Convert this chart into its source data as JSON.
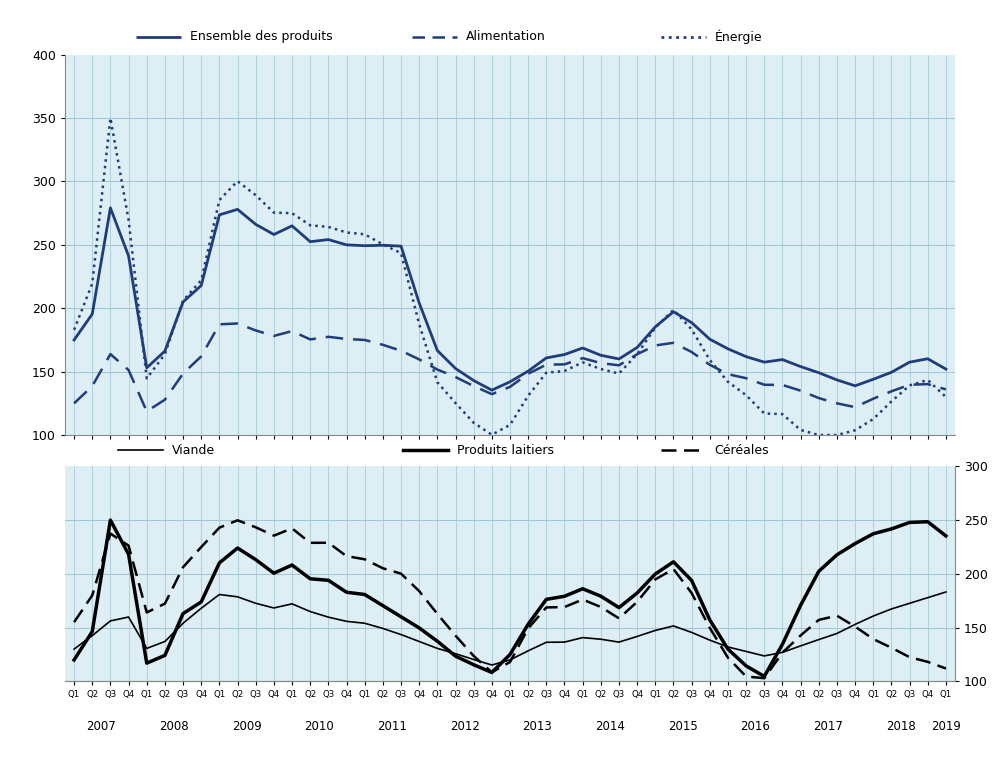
{
  "top_panel": {
    "ylim": [
      100,
      400
    ],
    "yticks": [
      100,
      150,
      200,
      250,
      300,
      350,
      400
    ],
    "ensemble": [
      175,
      190,
      195,
      200,
      280,
      275,
      270,
      155,
      152,
      155,
      160,
      175,
      200,
      210,
      215,
      220,
      265,
      278,
      272,
      280,
      272,
      265,
      260,
      258,
      260,
      265,
      255,
      252,
      258,
      255,
      250,
      250,
      250,
      250,
      248,
      248,
      252,
      250,
      248,
      245,
      175,
      170,
      165,
      160,
      150,
      148,
      142,
      140,
      135,
      138,
      142,
      148,
      150,
      155,
      160,
      165,
      163,
      165,
      168,
      170,
      165,
      160,
      158,
      162,
      165,
      172,
      180,
      188,
      195,
      198,
      192,
      188,
      182,
      175,
      172,
      168,
      165,
      162,
      160,
      158,
      155,
      160,
      158,
      155,
      152,
      150,
      148,
      145,
      142,
      140,
      138,
      142,
      145,
      148,
      150,
      155,
      158,
      162,
      160,
      155,
      152
    ],
    "alimentation": [
      125,
      130,
      138,
      145,
      163,
      168,
      160,
      125,
      118,
      120,
      125,
      132,
      145,
      152,
      158,
      165,
      182,
      190,
      188,
      188,
      185,
      182,
      180,
      178,
      180,
      182,
      178,
      175,
      180,
      178,
      175,
      175,
      178,
      175,
      175,
      172,
      170,
      168,
      165,
      162,
      158,
      155,
      150,
      148,
      145,
      142,
      138,
      135,
      132,
      135,
      138,
      142,
      148,
      152,
      155,
      158,
      155,
      158,
      160,
      162,
      158,
      155,
      152,
      158,
      162,
      165,
      168,
      172,
      175,
      172,
      168,
      165,
      160,
      155,
      152,
      148,
      146,
      145,
      143,
      140,
      138,
      140,
      138,
      136,
      133,
      130,
      128,
      126,
      124,
      122,
      122,
      126,
      130,
      133,
      135,
      138,
      140,
      142,
      140,
      138,
      136
    ],
    "energie": [
      183,
      198,
      218,
      235,
      352,
      340,
      308,
      155,
      143,
      148,
      158,
      172,
      200,
      212,
      218,
      225,
      272,
      292,
      295,
      302,
      295,
      288,
      280,
      275,
      278,
      275,
      268,
      265,
      270,
      265,
      260,
      258,
      265,
      260,
      255,
      252,
      248,
      245,
      242,
      240,
      150,
      145,
      140,
      135,
      122,
      118,
      108,
      103,
      100,
      103,
      108,
      112,
      130,
      142,
      148,
      155,
      150,
      152,
      155,
      162,
      155,
      148,
      145,
      152,
      158,
      168,
      178,
      188,
      195,
      200,
      190,
      182,
      172,
      158,
      150,
      142,
      138,
      132,
      125,
      118,
      112,
      118,
      112,
      106,
      100,
      100,
      100,
      100,
      100,
      102,
      105,
      108,
      115,
      122,
      128,
      135,
      140,
      148,
      143,
      135,
      130
    ]
  },
  "bottom_panel": {
    "ylim": [
      100,
      300
    ],
    "yticks_right": [
      100,
      150,
      200,
      250,
      300
    ],
    "viande": [
      130,
      138,
      142,
      148,
      155,
      162,
      168,
      135,
      130,
      132,
      135,
      140,
      150,
      158,
      165,
      170,
      178,
      182,
      180,
      178,
      175,
      172,
      170,
      168,
      170,
      172,
      168,
      165,
      163,
      160,
      158,
      155,
      158,
      155,
      152,
      150,
      148,
      145,
      142,
      140,
      135,
      132,
      130,
      128,
      125,
      122,
      120,
      118,
      115,
      118,
      120,
      122,
      128,
      133,
      136,
      138,
      136,
      138,
      140,
      142,
      140,
      138,
      135,
      138,
      140,
      143,
      146,
      148,
      150,
      152,
      148,
      145,
      142,
      138,
      135,
      132,
      130,
      128,
      126,
      124,
      122,
      126,
      130,
      132,
      135,
      138,
      140,
      143,
      146,
      150,
      155,
      158,
      162,
      165,
      168,
      170,
      173,
      175,
      178,
      180,
      183
    ],
    "produits_laitiers": [
      120,
      130,
      145,
      160,
      248,
      258,
      248,
      128,
      118,
      115,
      120,
      130,
      158,
      168,
      172,
      175,
      200,
      215,
      220,
      225,
      218,
      212,
      205,
      200,
      205,
      208,
      200,
      195,
      198,
      195,
      188,
      182,
      185,
      182,
      178,
      172,
      168,
      162,
      158,
      152,
      148,
      142,
      135,
      128,
      122,
      118,
      115,
      112,
      108,
      115,
      125,
      135,
      152,
      165,
      175,
      182,
      178,
      182,
      185,
      188,
      182,
      175,
      165,
      172,
      178,
      185,
      195,
      202,
      208,
      212,
      202,
      192,
      180,
      155,
      142,
      130,
      120,
      115,
      108,
      102,
      118,
      130,
      148,
      165,
      182,
      198,
      208,
      215,
      220,
      225,
      230,
      235,
      238,
      240,
      242,
      245,
      248,
      250,
      248,
      242,
      235
    ],
    "cereales": [
      155,
      165,
      178,
      200,
      235,
      248,
      242,
      178,
      165,
      162,
      168,
      178,
      200,
      212,
      220,
      228,
      238,
      245,
      248,
      250,
      248,
      242,
      238,
      235,
      238,
      242,
      235,
      228,
      235,
      230,
      222,
      215,
      220,
      215,
      210,
      205,
      205,
      202,
      198,
      192,
      178,
      168,
      160,
      150,
      140,
      132,
      122,
      115,
      108,
      112,
      118,
      128,
      148,
      162,
      168,
      172,
      168,
      172,
      175,
      178,
      172,
      165,
      155,
      162,
      168,
      178,
      188,
      198,
      202,
      205,
      192,
      180,
      168,
      148,
      135,
      122,
      112,
      105,
      100,
      100,
      118,
      125,
      132,
      140,
      148,
      155,
      160,
      162,
      160,
      155,
      148,
      142,
      138,
      135,
      130,
      125,
      122,
      120,
      118,
      115,
      112
    ]
  },
  "colors": {
    "blue_dark": "#1f3d7a",
    "background": "#ddeef5",
    "legend_bg": "#c8c8c8",
    "grid_color": "#9fc4d4",
    "border_color": "#888888"
  },
  "legend1": {
    "items": [
      "Ensemble des produits",
      "Alimentation",
      "Énergie"
    ],
    "styles": [
      "solid",
      "dashed",
      "dotted"
    ]
  },
  "legend2": {
    "items": [
      "Viande",
      "Produits laitiers",
      "Céréales"
    ],
    "styles": [
      "thin_solid",
      "thick_solid",
      "dashed"
    ]
  },
  "years": [
    "2007",
    "2008",
    "2009",
    "2010",
    "2011",
    "2012",
    "2013",
    "2014",
    "2015",
    "2016",
    "2017",
    "2018",
    "2019"
  ]
}
